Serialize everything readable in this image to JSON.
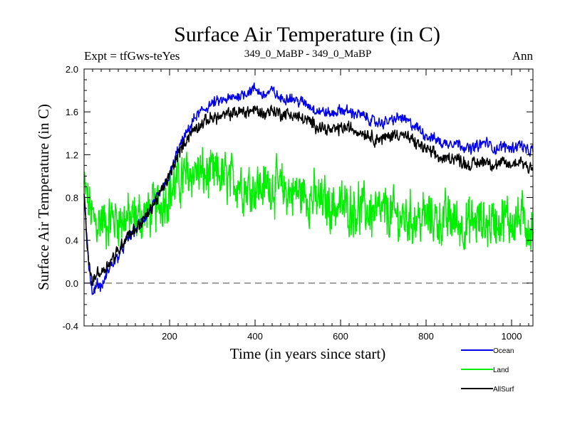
{
  "chart_data": {
    "type": "line",
    "title": "Surface Air Temperature (in C)",
    "subtitle_left": "Expt = tfGws-teYes",
    "subtitle_center": "349_0_MaBP - 349_0_MaBP",
    "subtitle_right": "Ann",
    "xlabel": "Time (in years since start)",
    "ylabel": "Surface Air Temperature (in C)",
    "xlim": [
      0,
      1050
    ],
    "ylim": [
      -0.4,
      2.0
    ],
    "xticks": [
      200,
      400,
      600,
      800,
      1000
    ],
    "xtick_labels": [
      "200",
      "400",
      "600",
      "800",
      "1000"
    ],
    "yticks": [
      -0.4,
      0.0,
      0.4,
      0.8,
      1.2,
      1.6,
      2.0
    ],
    "ytick_labels": [
      "-0.4",
      "0.0",
      "0.4",
      "0.8",
      "1.2",
      "1.6",
      "2.0"
    ],
    "zero_line": 0.0,
    "series": [
      {
        "name": "Ocean",
        "color": "#0000ee",
        "x": [
          0,
          10,
          20,
          30,
          40,
          50,
          60,
          80,
          100,
          120,
          150,
          180,
          200,
          220,
          240,
          260,
          280,
          300,
          320,
          340,
          360,
          380,
          400,
          420,
          440,
          460,
          480,
          500,
          520,
          540,
          560,
          580,
          600,
          620,
          640,
          660,
          680,
          700,
          720,
          740,
          760,
          780,
          800,
          820,
          840,
          860,
          880,
          900,
          920,
          940,
          960,
          980,
          1000,
          1020,
          1040,
          1050
        ],
        "values": [
          0.85,
          0.2,
          -0.1,
          0.0,
          -0.05,
          0.05,
          0.15,
          0.25,
          0.4,
          0.5,
          0.65,
          0.85,
          1.0,
          1.25,
          1.4,
          1.55,
          1.62,
          1.68,
          1.7,
          1.72,
          1.75,
          1.78,
          1.82,
          1.75,
          1.8,
          1.72,
          1.74,
          1.7,
          1.68,
          1.62,
          1.6,
          1.58,
          1.62,
          1.6,
          1.58,
          1.55,
          1.5,
          1.5,
          1.52,
          1.55,
          1.5,
          1.45,
          1.38,
          1.35,
          1.3,
          1.32,
          1.3,
          1.25,
          1.28,
          1.32,
          1.25,
          1.28,
          1.26,
          1.3,
          1.22,
          1.25
        ]
      },
      {
        "name": "Land",
        "color": "#00ee00",
        "x": [
          0,
          10,
          20,
          30,
          40,
          50,
          60,
          80,
          100,
          120,
          150,
          180,
          200,
          220,
          240,
          260,
          280,
          300,
          320,
          340,
          360,
          380,
          400,
          420,
          440,
          460,
          480,
          500,
          520,
          540,
          560,
          580,
          600,
          620,
          640,
          660,
          680,
          700,
          720,
          740,
          760,
          780,
          800,
          820,
          840,
          860,
          880,
          900,
          920,
          940,
          960,
          980,
          1000,
          1020,
          1040,
          1050
        ],
        "values": [
          0.9,
          0.75,
          0.6,
          0.55,
          0.6,
          0.55,
          0.6,
          0.6,
          0.6,
          0.6,
          0.65,
          0.75,
          0.85,
          0.95,
          1.0,
          1.05,
          1.0,
          1.0,
          1.0,
          0.95,
          0.95,
          0.9,
          0.9,
          0.9,
          0.92,
          0.88,
          0.85,
          0.85,
          0.82,
          0.78,
          0.75,
          0.72,
          0.72,
          0.7,
          0.7,
          0.68,
          0.65,
          0.65,
          0.65,
          0.6,
          0.6,
          0.6,
          0.62,
          0.6,
          0.58,
          0.6,
          0.55,
          0.55,
          0.58,
          0.55,
          0.58,
          0.6,
          0.58,
          0.6,
          0.55,
          0.5
        ]
      },
      {
        "name": "AllSurf",
        "color": "#000000",
        "x": [
          0,
          10,
          20,
          30,
          40,
          50,
          60,
          80,
          100,
          120,
          150,
          180,
          200,
          220,
          240,
          260,
          280,
          300,
          320,
          340,
          360,
          380,
          400,
          420,
          440,
          460,
          480,
          500,
          520,
          540,
          560,
          580,
          600,
          620,
          640,
          660,
          680,
          700,
          720,
          740,
          760,
          780,
          800,
          820,
          840,
          860,
          880,
          900,
          920,
          940,
          960,
          980,
          1000,
          1020,
          1040,
          1050
        ],
        "values": [
          0.8,
          0.2,
          0.0,
          0.1,
          0.1,
          0.15,
          0.2,
          0.3,
          0.45,
          0.5,
          0.65,
          0.85,
          1.0,
          1.2,
          1.35,
          1.45,
          1.5,
          1.55,
          1.55,
          1.58,
          1.6,
          1.6,
          1.62,
          1.58,
          1.62,
          1.58,
          1.58,
          1.55,
          1.52,
          1.48,
          1.45,
          1.42,
          1.45,
          1.45,
          1.42,
          1.4,
          1.35,
          1.35,
          1.38,
          1.4,
          1.35,
          1.3,
          1.25,
          1.2,
          1.15,
          1.18,
          1.15,
          1.1,
          1.12,
          1.15,
          1.1,
          1.12,
          1.1,
          1.15,
          1.08,
          1.1
        ]
      }
    ]
  }
}
